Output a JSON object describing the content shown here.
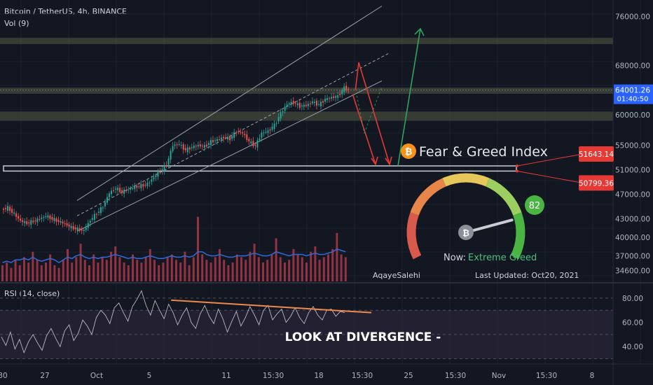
{
  "colors": {
    "background": "#131722",
    "up": "#26a69a",
    "down": "#ef5350",
    "volume": "#b63a4a",
    "vol_ma": "#2f6ad8",
    "rsi": "#d1d4dc",
    "divergence": "#f08a4b",
    "channel": "#9aa0ab",
    "zone": "#434a3b",
    "target_down": "#e53935",
    "target_up": "#2ea55a",
    "price_badge": "#2962ff"
  },
  "header": {
    "symbol": "Bitcoin / TetherUS, 4h, BINANCE",
    "volume_label": "Vol (9)",
    "rsi_label": "RSI (14, close)"
  },
  "price_axis": {
    "ticks": [
      "76000.00",
      "68000.00",
      "64001.26",
      "60000.00",
      "55000.00",
      "51000.00",
      "47000.00",
      "43000.00",
      "40000.00",
      "37000.00",
      "34600.00"
    ],
    "current_price": "64001.26",
    "countdown": "01:40:50"
  },
  "rsi_axis": {
    "ticks": [
      "80.00",
      "60.00",
      "40.00"
    ]
  },
  "time_axis": {
    "ticks": [
      "30",
      "27",
      "Oct",
      "5",
      "11",
      "15:30",
      "18",
      "15:30",
      "25",
      "15:30",
      "Nov",
      "15:30",
      "8"
    ]
  },
  "price_labels": {
    "upper": "51643.14",
    "lower": "50799.36"
  },
  "widget": {
    "title": "Fear & Greed Index",
    "value": "82",
    "status_prefix": "Now:",
    "status": "Extreme Greed",
    "updated": "Last Updated: Oct20, 2021",
    "author": "AqayeSalehi"
  },
  "annotation": "LOOK AT DIVERGENCE -",
  "chart_data": {
    "type": "candlestick",
    "symbol": "BTCUSDT",
    "interval": "4h",
    "exchange": "BINANCE",
    "y_range": [
      33500,
      78000
    ],
    "rsi_range": [
      28,
      88
    ],
    "last_price": 64001.26,
    "support_zone": [
      50799.36,
      51643.14
    ],
    "resistance_zones": [
      [
        59000,
        60500
      ],
      [
        63400,
        64400
      ],
      [
        71500,
        72500
      ]
    ],
    "fear_greed_index": 82,
    "price_path": [
      [
        0,
        44500
      ],
      [
        3,
        44800
      ],
      [
        6,
        43800
      ],
      [
        9,
        42700
      ],
      [
        12,
        42300
      ],
      [
        15,
        42600
      ],
      [
        18,
        43000
      ],
      [
        21,
        43500
      ],
      [
        24,
        43000
      ],
      [
        27,
        42600
      ],
      [
        30,
        42200
      ],
      [
        33,
        41600
      ],
      [
        36,
        41300
      ],
      [
        39,
        41100
      ],
      [
        42,
        42800
      ],
      [
        45,
        43900
      ],
      [
        48,
        45000
      ],
      [
        51,
        47200
      ],
      [
        54,
        48000
      ],
      [
        57,
        47400
      ],
      [
        60,
        47800
      ],
      [
        63,
        48200
      ],
      [
        66,
        48400
      ],
      [
        69,
        48700
      ],
      [
        72,
        49800
      ],
      [
        75,
        50800
      ],
      [
        78,
        51800
      ],
      [
        81,
        55000
      ],
      [
        84,
        55200
      ],
      [
        87,
        54200
      ],
      [
        90,
        54700
      ],
      [
        93,
        55000
      ],
      [
        96,
        54800
      ],
      [
        99,
        55600
      ],
      [
        102,
        55900
      ],
      [
        105,
        56300
      ],
      [
        108,
        56100
      ],
      [
        111,
        57300
      ],
      [
        114,
        57000
      ],
      [
        117,
        55600
      ],
      [
        120,
        54900
      ],
      [
        123,
        57000
      ],
      [
        126,
        57300
      ],
      [
        129,
        58300
      ],
      [
        132,
        60200
      ],
      [
        135,
        61700
      ],
      [
        138,
        62000
      ],
      [
        141,
        61400
      ],
      [
        144,
        61500
      ],
      [
        147,
        62100
      ],
      [
        150,
        61600
      ],
      [
        153,
        62500
      ],
      [
        156,
        62800
      ],
      [
        159,
        63000
      ],
      [
        162,
        64400
      ],
      [
        164,
        64000
      ]
    ],
    "volume": [
      6,
      7,
      5,
      8,
      6,
      9,
      7,
      11,
      8,
      6,
      7,
      10,
      6,
      5,
      8,
      12,
      7,
      9,
      14,
      8,
      6,
      10,
      7,
      9,
      8,
      11,
      13,
      9,
      7,
      6,
      10,
      8,
      7,
      9,
      12,
      8,
      6,
      7,
      9,
      10,
      8,
      7,
      11,
      6,
      9,
      24,
      10,
      8,
      7,
      9,
      12,
      8,
      6,
      7,
      10,
      9,
      8,
      11,
      14,
      9,
      7,
      8,
      10,
      16,
      9,
      7,
      8,
      12,
      10,
      9,
      7,
      11,
      13,
      8,
      9,
      10,
      12,
      18,
      10,
      9
    ],
    "volume_ma": [
      7,
      7.5,
      7,
      8,
      8,
      8.5,
      8,
      9,
      8,
      7.5,
      8,
      8.5,
      8,
      7,
      8,
      9,
      8.5,
      9.5,
      10,
      9,
      8.5,
      9,
      8.5,
      9,
      9,
      9.5,
      10,
      9.5,
      9,
      8.5,
      9,
      8.5,
      8.5,
      9,
      9.5,
      9,
      8.5,
      8.5,
      9,
      9.5,
      9,
      9,
      9.5,
      9,
      9.5,
      11,
      11,
      10,
      9.5,
      9.5,
      10,
      9.5,
      9,
      9,
      9.5,
      9.5,
      9.5,
      10,
      10.5,
      10,
      9.5,
      9.5,
      10,
      11,
      10.5,
      10,
      9.5,
      10,
      10,
      10,
      9.5,
      10,
      10.5,
      10,
      10,
      10.5,
      11,
      12,
      11.5,
      11
    ],
    "rsi": [
      48,
      41,
      52,
      38,
      46,
      35,
      44,
      50,
      43,
      37,
      49,
      55,
      47,
      40,
      53,
      58,
      45,
      51,
      62,
      57,
      50,
      64,
      70,
      66,
      59,
      72,
      76,
      68,
      61,
      73,
      79,
      86,
      74,
      66,
      78,
      70,
      63,
      75,
      68,
      58,
      66,
      72,
      60,
      55,
      67,
      74,
      65,
      59,
      71,
      63,
      52,
      61,
      69,
      57,
      64,
      73,
      66,
      58,
      70,
      74,
      62,
      67,
      71,
      60,
      65,
      72,
      64,
      59,
      68,
      73,
      66,
      62,
      70,
      71,
      65,
      69,
      68
    ],
    "rsi_divergence": [
      [
        85,
        76
      ],
      [
        165,
        68
      ]
    ],
    "projection": {
      "up_target": 74000,
      "down_target": 51200
    }
  }
}
